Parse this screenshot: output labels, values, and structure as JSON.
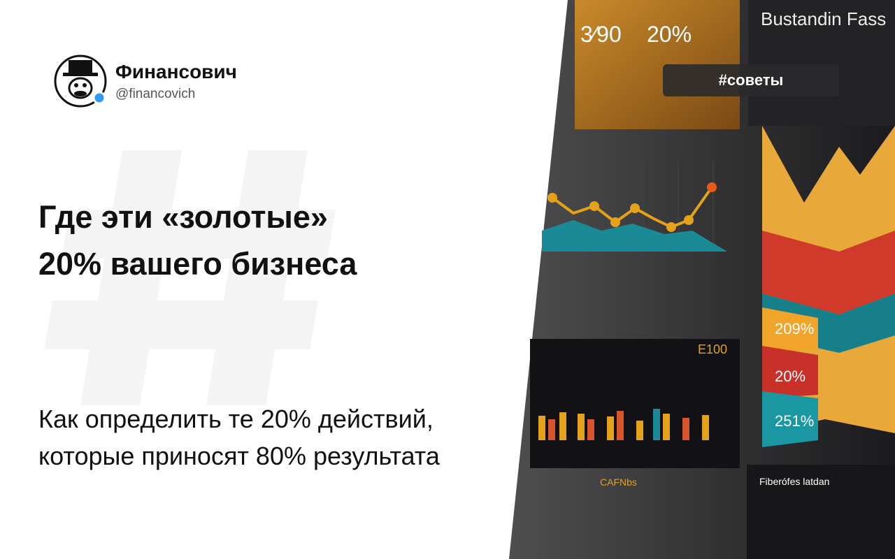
{
  "post": {
    "author": {
      "name": "Финансович",
      "handle": "@financovich"
    },
    "tag": "#советы",
    "title": [
      "Где эти «золотые»",
      "20% вашего бизнеса"
    ],
    "subtitle": [
      "Как определить те 20% действий,",
      "которые приносят 80% результата"
    ]
  },
  "illustration": {
    "heading": "Bustandin Fass",
    "panel_values": [
      "3⁄90",
      "20%"
    ],
    "ribbon_labels": [
      "209%",
      "20%",
      "251%"
    ],
    "chart_label": "E100",
    "footer_titles": [
      "CAFNbs",
      "Fiberófes latdan"
    ]
  }
}
